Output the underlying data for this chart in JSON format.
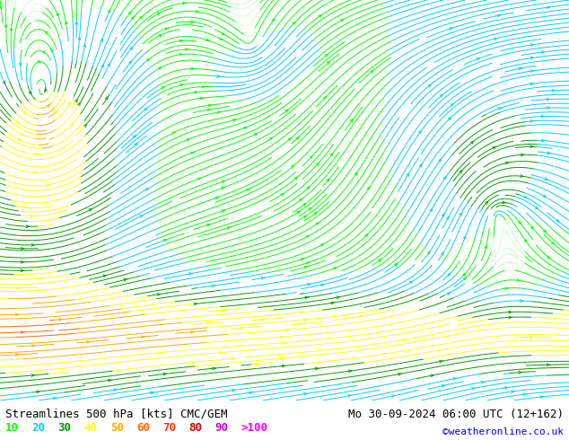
{
  "title_left": "Streamlines 500 hPa [kts] CMC/GEM",
  "title_right": "Mo 30-09-2024 06:00 UTC (12+162)",
  "credit": "©weatheronline.co.uk",
  "legend_values": [
    "10",
    "20",
    "30",
    "40",
    "50",
    "60",
    "70",
    "80",
    "90",
    ">100"
  ],
  "legend_colors": [
    "#00ff00",
    "#00ccff",
    "#009900",
    "#ffff00",
    "#ffaa00",
    "#ff6600",
    "#ff3300",
    "#cc0000",
    "#cc00cc",
    "#ff00ff"
  ],
  "speed_thresholds": [
    0,
    10,
    20,
    30,
    40,
    50,
    60,
    70,
    80,
    90,
    200
  ],
  "stream_colors": [
    "#ccffcc",
    "#00ff00",
    "#00ccff",
    "#009900",
    "#ffff00",
    "#ffaa00",
    "#ff6600",
    "#ff3300",
    "#cc0000",
    "#ff00ff"
  ],
  "land_color": "#d4edba",
  "sea_color": "#f0f0f0",
  "bg_color": "#ffffff",
  "coast_color": "#333333",
  "lon_min": -6,
  "lon_max": 35,
  "lat_min": 49,
  "lat_max": 72.5,
  "figsize": [
    6.34,
    4.9
  ],
  "dpi": 100,
  "font_color": "#000000",
  "title_font_size": 9,
  "legend_font_size": 9
}
